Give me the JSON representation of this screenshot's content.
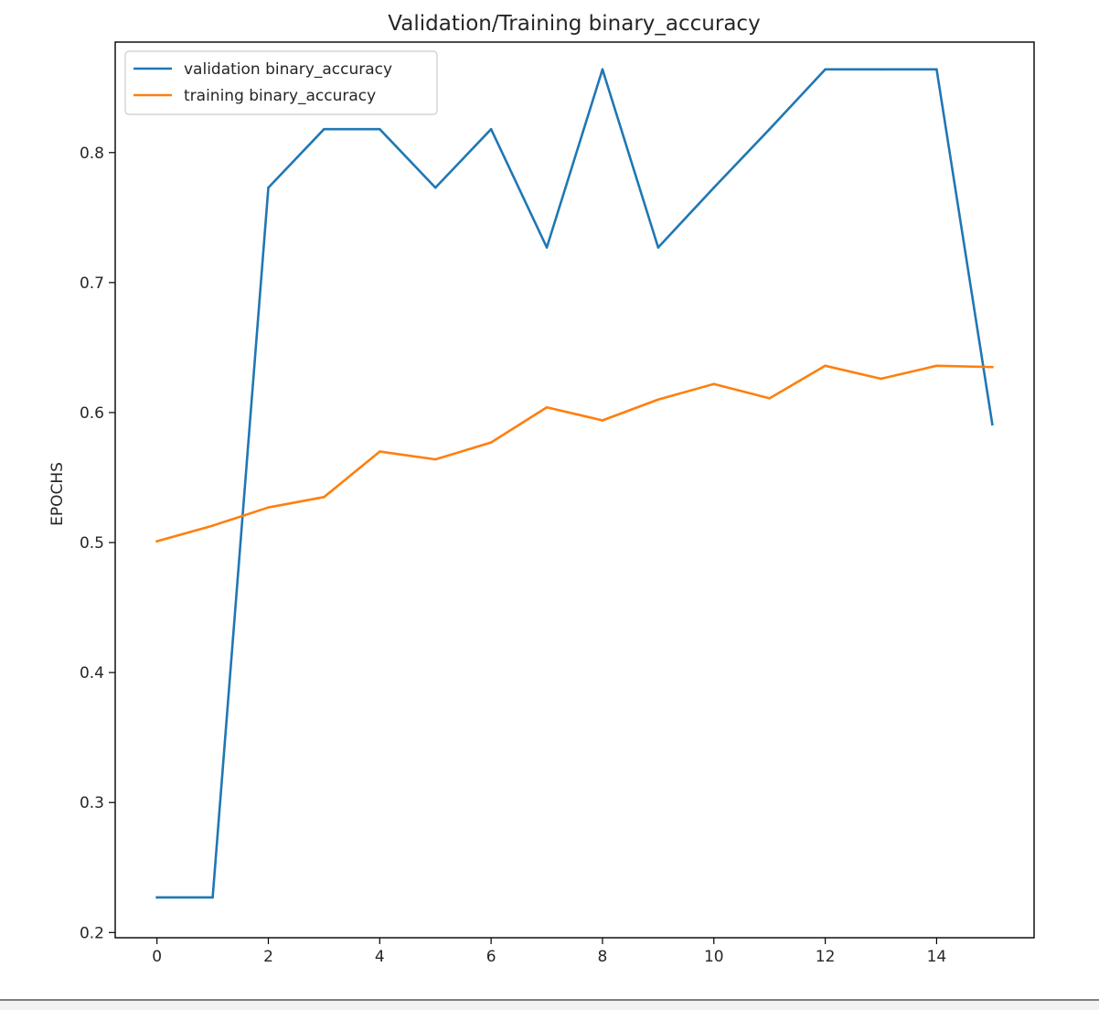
{
  "chart_data": {
    "type": "line",
    "title": "Validation/Training binary_accuracy",
    "xlabel": "",
    "ylabel": "EPOCHS",
    "xlim": [
      -0.75,
      15.75
    ],
    "ylim": [
      0.196,
      0.885
    ],
    "xticks": [
      0,
      2,
      4,
      6,
      8,
      10,
      12,
      14
    ],
    "xtick_labels": [
      "0",
      "2",
      "4",
      "6",
      "8",
      "10",
      "12",
      "14"
    ],
    "yticks": [
      0.2,
      0.3,
      0.4,
      0.5,
      0.6,
      0.7,
      0.8
    ],
    "ytick_labels": [
      "0.2",
      "0.3",
      "0.4",
      "0.5",
      "0.6",
      "0.7",
      "0.8"
    ],
    "grid": false,
    "legend_position": "upper-left",
    "x": [
      0,
      1,
      2,
      3,
      4,
      5,
      6,
      7,
      8,
      9,
      10,
      11,
      12,
      13,
      14,
      15
    ],
    "series": [
      {
        "name": "validation binary_accuracy",
        "color": "#1f77b4",
        "values": [
          0.227,
          0.227,
          0.773,
          0.818,
          0.818,
          0.773,
          0.818,
          0.727,
          0.864,
          0.727,
          0.773,
          0.818,
          0.864,
          0.864,
          0.864,
          0.591
        ]
      },
      {
        "name": "training binary_accuracy",
        "color": "#ff7f0e",
        "values": [
          0.501,
          0.513,
          0.527,
          0.535,
          0.57,
          0.564,
          0.577,
          0.604,
          0.594,
          0.61,
          0.622,
          0.611,
          0.636,
          0.626,
          0.636,
          0.635
        ]
      }
    ]
  }
}
